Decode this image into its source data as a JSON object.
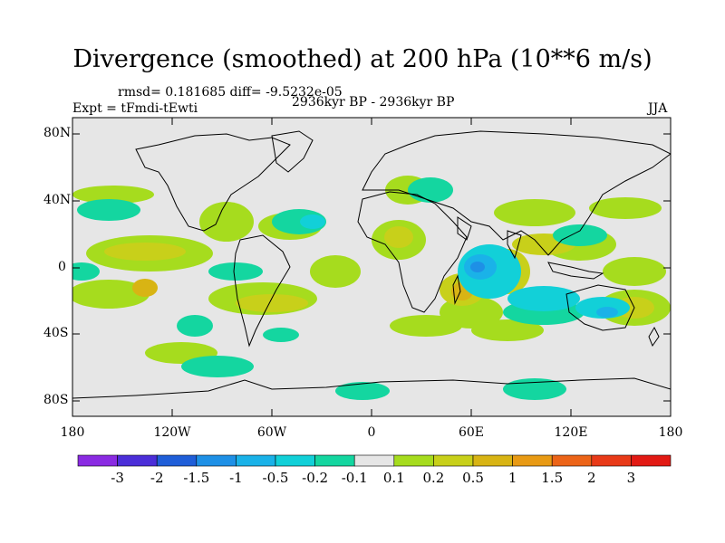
{
  "figure": {
    "title": "Divergence (smoothed) at 200 hPa (10**6 m/s)",
    "stats": "rmsd= 0.181685  diff= -9.5232e-05",
    "experiment": "Expt = tFmdi-tEwti",
    "period": "2936kyr BP - 2936kyr BP",
    "season": "JJA"
  },
  "axes": {
    "lat_labels": [
      "80N",
      "40N",
      "0",
      "40S",
      "80S"
    ],
    "lon_labels": [
      "180",
      "120W",
      "60W",
      "0",
      "60E",
      "120E",
      "180"
    ]
  },
  "colorbar": {
    "labels": [
      "-3",
      "-2",
      "-1.5",
      "-1",
      "-0.5",
      "-0.2",
      "-0.1",
      "0.1",
      "0.2",
      "0.5",
      "1",
      "1.5",
      "2",
      "3"
    ],
    "colors": [
      "#8a2be2",
      "#4b2ed8",
      "#1f5ed8",
      "#1e90e6",
      "#1ab2e8",
      "#12d0d8",
      "#14d6a0",
      "#e6e6e6",
      "#a6dc1e",
      "#c8d01a",
      "#d8b414",
      "#e89a14",
      "#ec6418",
      "#e83a18",
      "#e21a14"
    ]
  }
}
